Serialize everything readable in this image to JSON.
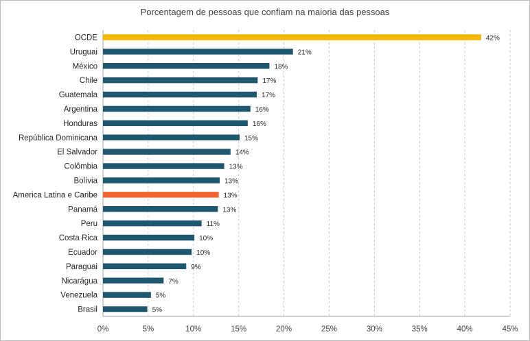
{
  "chart_data": {
    "type": "bar",
    "orientation": "horizontal",
    "title": "Porcentagem de pessoas que confiam na maioria das pessoas",
    "xlabel": "",
    "ylabel": "",
    "xlim": [
      0,
      45
    ],
    "x_ticks": [
      0,
      5,
      10,
      15,
      20,
      25,
      30,
      35,
      40,
      45
    ],
    "x_tick_labels": [
      "0%",
      "5%",
      "10%",
      "15%",
      "20%",
      "25%",
      "30%",
      "35%",
      "40%",
      "45%"
    ],
    "grid": "vertical dashed",
    "legend": "none",
    "categories": [
      "OCDE",
      "Uruguai",
      "México",
      "Chile",
      "Guatemala",
      "Argentina",
      "Honduras",
      "República Dominicana",
      "El Salvador",
      "Colômbia",
      "Bolívia",
      "America Latina e Caribe",
      "Panamá",
      "Peru",
      "Costa Rica",
      "Ecuador",
      "Paraguai",
      "Nicarágua",
      "Venezuela",
      "Brasil"
    ],
    "values": [
      41.8,
      21.0,
      18.4,
      17.1,
      17.0,
      16.3,
      16.0,
      15.1,
      14.1,
      13.4,
      12.9,
      12.8,
      12.7,
      10.9,
      10.1,
      9.8,
      9.2,
      6.7,
      5.3,
      4.9
    ],
    "value_labels": [
      "42%",
      "21%",
      "18%",
      "17%",
      "17%",
      "16%",
      "16%",
      "15%",
      "14%",
      "13%",
      "13%",
      "13%",
      "13%",
      "11%",
      "10%",
      "10%",
      "9%",
      "7%",
      "5%",
      "5%"
    ],
    "colors": {
      "default": "#1f5670",
      "highlights": {
        "OCDE": "#f5b800",
        "America Latina e Caribe": "#f26531"
      }
    }
  }
}
